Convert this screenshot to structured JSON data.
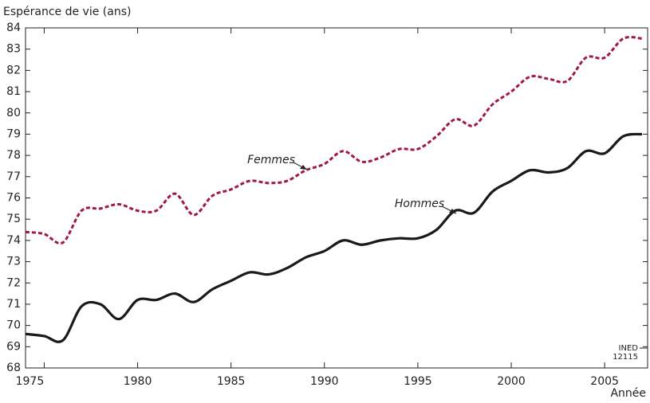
{
  "chart_data": {
    "type": "line",
    "y_label": "Espérance de vie (ans)",
    "x_label": "Année",
    "note": [
      "INED",
      "12115"
    ],
    "x": [
      1974,
      1975,
      1976,
      1977,
      1978,
      1979,
      1980,
      1981,
      1982,
      1983,
      1984,
      1985,
      1986,
      1987,
      1988,
      1989,
      1990,
      1991,
      1992,
      1993,
      1994,
      1995,
      1996,
      1997,
      1998,
      1999,
      2000,
      2001,
      2002,
      2003,
      2004,
      2005,
      2006,
      2007
    ],
    "series": [
      {
        "name": "Femmes",
        "color": "#a0174b",
        "dashed": true,
        "values": [
          74.4,
          74.3,
          73.9,
          75.4,
          75.5,
          75.7,
          75.4,
          75.4,
          76.2,
          75.2,
          76.1,
          76.4,
          76.8,
          76.7,
          76.8,
          77.3,
          77.6,
          78.2,
          77.7,
          77.9,
          78.3,
          78.3,
          78.9,
          79.7,
          79.4,
          80.4,
          81.0,
          81.7,
          81.6,
          81.5,
          82.6,
          82.6,
          83.5,
          83.5
        ]
      },
      {
        "name": "Hommes",
        "color": "#1a1a1a",
        "dashed": false,
        "values": [
          69.6,
          69.5,
          69.3,
          70.9,
          71.0,
          70.3,
          71.2,
          71.2,
          71.5,
          71.1,
          71.7,
          72.1,
          72.5,
          72.4,
          72.7,
          73.2,
          73.5,
          74.0,
          73.8,
          74.0,
          74.1,
          74.1,
          74.5,
          75.4,
          75.3,
          76.3,
          76.8,
          77.3,
          77.2,
          77.4,
          78.2,
          78.1,
          78.9,
          79.0
        ]
      }
    ],
    "xlim": [
      1974,
      2007.3
    ],
    "xticks": [
      1975,
      1980,
      1985,
      1990,
      1995,
      2000,
      2005
    ],
    "ylim": [
      68,
      84
    ],
    "yticks": [
      68,
      69,
      70,
      71,
      72,
      73,
      74,
      75,
      76,
      77,
      78,
      79,
      80,
      81,
      82,
      83,
      84
    ],
    "grid": false
  }
}
